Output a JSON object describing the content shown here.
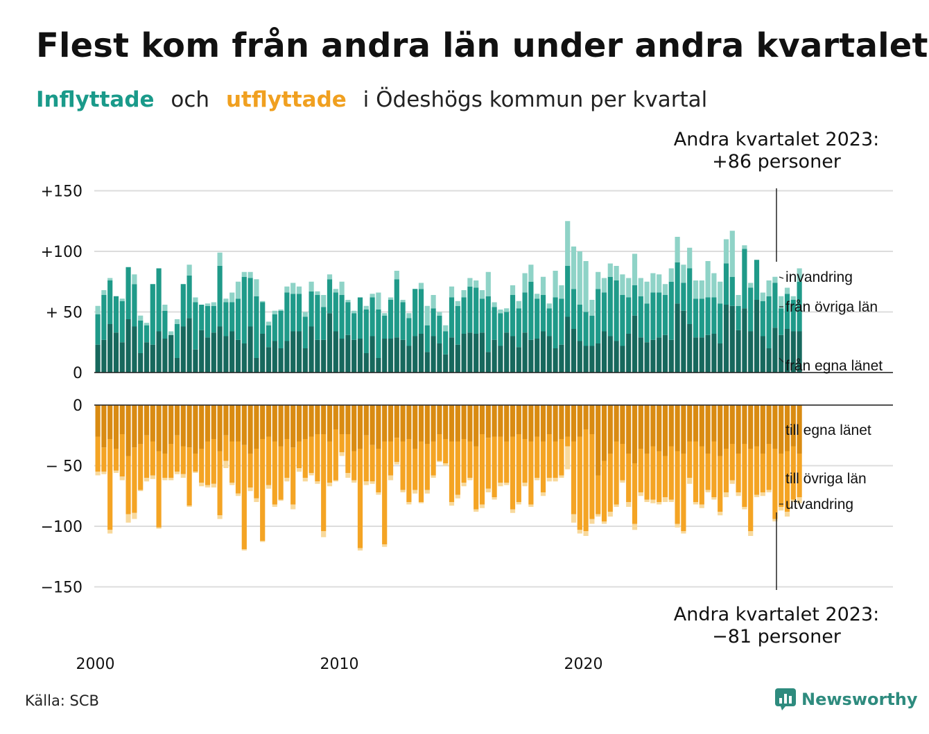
{
  "header": {
    "title": "Flest kom från andra län under andra kvartalet",
    "subtitle_in": "Inflyttade",
    "subtitle_och": "och",
    "subtitle_out": "utflyttade",
    "subtitle_rest": "i Ödeshögs kommun per kvartal"
  },
  "annotations": {
    "top_line1": "Andra kvartalet 2023:",
    "top_line2": "+86 personer",
    "bottom_line1": "Andra kvartalet 2023:",
    "bottom_line2": "−81 personer"
  },
  "footer": {
    "source": "Källa: SCB",
    "brand": "Newsworthy"
  },
  "colors": {
    "in_own": "#17685d",
    "in_other": "#1f9a89",
    "in_immigration": "#8fd3c7",
    "out_own": "#d98b12",
    "out_other": "#f4a424",
    "out_emigration": "#f8d99c",
    "brand": "#2e8b7e"
  },
  "chart_data": [
    {
      "type": "bar",
      "stacked": true,
      "x_start": "2000 Q1",
      "x_end": "2023 Q2",
      "x_tick_labels": [
        "2000",
        "2010",
        "2020"
      ],
      "y_ticks": [
        0,
        50,
        100,
        150
      ],
      "y_tick_labels": [
        "0",
        "+ 50",
        "+100",
        "+150"
      ],
      "ylim": [
        0,
        150
      ],
      "grid": true,
      "series_labels": [
        "från egna länet",
        "från övriga län",
        "invandring"
      ],
      "series": [
        {
          "name": "från egna länet",
          "values": [
            23,
            27,
            40,
            33,
            25,
            44,
            38,
            16,
            25,
            23,
            34,
            28,
            31,
            12,
            38,
            45,
            19,
            35,
            29,
            33,
            38,
            30,
            34,
            27,
            24,
            38,
            12,
            32,
            21,
            26,
            20,
            26,
            34,
            34,
            20,
            38,
            27,
            27,
            49,
            34,
            28,
            31,
            27,
            28,
            16,
            30,
            12,
            28,
            28,
            29,
            27,
            22,
            30,
            32,
            17,
            30,
            24,
            15,
            29,
            23,
            32,
            33,
            32,
            33,
            17,
            27,
            22,
            33,
            30,
            21,
            33,
            27,
            28,
            34,
            30,
            20,
            23,
            46,
            36,
            26,
            22,
            22,
            24,
            34,
            30,
            26,
            22,
            32,
            47,
            29,
            25,
            27,
            29,
            31,
            27,
            57,
            51,
            40,
            29,
            29,
            31,
            32,
            24,
            56,
            55,
            35,
            53,
            34,
            60,
            30,
            20,
            37,
            31,
            36,
            34,
            34
          ]
        },
        {
          "name": "från övriga län",
          "values": [
            25,
            37,
            36,
            30,
            34,
            43,
            35,
            27,
            14,
            50,
            52,
            23,
            0,
            28,
            35,
            35,
            39,
            21,
            26,
            22,
            50,
            28,
            24,
            34,
            55,
            40,
            51,
            26,
            18,
            22,
            31,
            40,
            31,
            31,
            26,
            29,
            37,
            27,
            28,
            32,
            36,
            27,
            22,
            34,
            36,
            32,
            40,
            19,
            32,
            48,
            31,
            23,
            39,
            37,
            22,
            23,
            23,
            19,
            33,
            32,
            30,
            38,
            38,
            28,
            46,
            27,
            27,
            17,
            34,
            32,
            33,
            48,
            33,
            30,
            23,
            42,
            38,
            42,
            33,
            30,
            28,
            25,
            45,
            32,
            49,
            50,
            42,
            30,
            25,
            34,
            32,
            39,
            37,
            33,
            48,
            34,
            23,
            46,
            32,
            32,
            31,
            30,
            33,
            34,
            24,
            20,
            49,
            36,
            33,
            29,
            43,
            37,
            22,
            29,
            26,
            41
          ]
        },
        {
          "name": "invandring",
          "values": [
            7,
            4,
            2,
            0,
            2,
            0,
            8,
            4,
            2,
            0,
            0,
            5,
            3,
            4,
            0,
            9,
            4,
            0,
            2,
            3,
            11,
            3,
            8,
            14,
            4,
            5,
            14,
            1,
            3,
            3,
            1,
            5,
            9,
            6,
            4,
            8,
            3,
            10,
            4,
            3,
            11,
            2,
            2,
            0,
            3,
            3,
            14,
            2,
            2,
            7,
            2,
            4,
            0,
            5,
            16,
            11,
            3,
            5,
            9,
            4,
            6,
            7,
            6,
            7,
            20,
            4,
            3,
            3,
            8,
            6,
            16,
            14,
            4,
            15,
            4,
            22,
            11,
            37,
            35,
            44,
            42,
            13,
            14,
            12,
            11,
            12,
            17,
            16,
            26,
            15,
            18,
            16,
            15,
            9,
            11,
            21,
            15,
            17,
            15,
            15,
            30,
            20,
            18,
            20,
            38,
            9,
            3,
            4,
            0,
            7,
            13,
            5,
            10,
            5,
            3,
            11
          ]
        }
      ]
    },
    {
      "type": "bar",
      "stacked": true,
      "x_start": "2000 Q1",
      "x_end": "2023 Q2",
      "x_tick_labels": [
        "2000",
        "2010",
        "2020"
      ],
      "y_ticks": [
        0,
        -50,
        -100,
        -150
      ],
      "y_tick_labels": [
        "0",
        "− 50",
        "−100",
        "−150"
      ],
      "ylim": [
        -150,
        0
      ],
      "grid": true,
      "series_labels": [
        "till egna länet",
        "till övriga län",
        "utvandring"
      ],
      "series": [
        {
          "name": "till egna länet",
          "values": [
            -26,
            -35,
            -28,
            -36,
            -24,
            -42,
            -35,
            -32,
            -25,
            -30,
            -38,
            -40,
            -32,
            -25,
            -34,
            -35,
            -40,
            -36,
            -30,
            -28,
            -38,
            -25,
            -30,
            -30,
            -33,
            -40,
            -36,
            -28,
            -26,
            -30,
            -34,
            -28,
            -35,
            -30,
            -28,
            -26,
            -24,
            -24,
            -30,
            -20,
            -24,
            -24,
            -38,
            -36,
            -25,
            -33,
            -36,
            -30,
            -30,
            -27,
            -30,
            -28,
            -36,
            -30,
            -32,
            -30,
            -24,
            -28,
            -30,
            -30,
            -28,
            -30,
            -34,
            -24,
            -27,
            -26,
            -26,
            -30,
            -26,
            -24,
            -28,
            -30,
            -26,
            -30,
            -24,
            -30,
            -28,
            -26,
            -30,
            -26,
            -20,
            -24,
            -58,
            -46,
            -40,
            -30,
            -32,
            -40,
            -48,
            -36,
            -40,
            -34,
            -38,
            -42,
            -34,
            -38,
            -40,
            -30,
            -30,
            -34,
            -40,
            -30,
            -42,
            -36,
            -32,
            -40,
            -32,
            -36,
            -34,
            -40,
            -32,
            -36,
            -40,
            -38,
            -34,
            -40
          ]
        },
        {
          "name": "till övriga län",
          "values": [
            -29,
            -20,
            -75,
            -18,
            -35,
            -48,
            -54,
            -38,
            -35,
            -28,
            -63,
            -20,
            -28,
            -30,
            -23,
            -48,
            -15,
            -28,
            -36,
            -37,
            -53,
            -21,
            -34,
            -43,
            -86,
            -28,
            -41,
            -84,
            -40,
            -52,
            -44,
            -32,
            -47,
            -22,
            -32,
            -30,
            -39,
            -80,
            -34,
            -42,
            -15,
            -32,
            -24,
            -82,
            -38,
            -30,
            -36,
            -85,
            -28,
            -20,
            -40,
            -52,
            -34,
            -50,
            -38,
            -28,
            -22,
            -20,
            -50,
            -44,
            -36,
            -30,
            -52,
            -58,
            -42,
            -50,
            -38,
            -34,
            -60,
            -56,
            -36,
            -52,
            -34,
            -42,
            -36,
            -30,
            -30,
            -8,
            -60,
            -77,
            -84,
            -70,
            -32,
            -50,
            -48,
            -52,
            -30,
            -40,
            -50,
            -36,
            -38,
            -44,
            -42,
            -34,
            -44,
            -60,
            -64,
            -30,
            -50,
            -48,
            -30,
            -46,
            -46,
            -36,
            -30,
            -32,
            -52,
            -68,
            -40,
            -32,
            -38,
            -58,
            -44,
            -50,
            -44,
            -36
          ]
        },
        {
          "name": "utvandring",
          "values": [
            -3,
            -2,
            -3,
            -2,
            -3,
            -7,
            -5,
            -1,
            -3,
            -3,
            -1,
            -2,
            -2,
            -2,
            -3,
            -1,
            -1,
            -3,
            -2,
            -3,
            -3,
            -6,
            -2,
            -2,
            -1,
            -3,
            -3,
            -1,
            -3,
            -2,
            -1,
            -3,
            -4,
            -3,
            -3,
            -2,
            -2,
            -5,
            -3,
            -1,
            -3,
            -4,
            -2,
            -2,
            -3,
            -2,
            -2,
            -2,
            -4,
            -2,
            -2,
            -2,
            -3,
            -1,
            -3,
            -2,
            -1,
            -2,
            -3,
            -3,
            -3,
            -2,
            -2,
            -3,
            -3,
            -2,
            -3,
            -2,
            -3,
            -2,
            -3,
            -2,
            -2,
            -3,
            -3,
            -3,
            -2,
            -19,
            -7,
            -3,
            -4,
            -4,
            -2,
            -2,
            -4,
            -2,
            -2,
            -4,
            -5,
            -3,
            -2,
            -3,
            -2,
            -4,
            -2,
            -3,
            -2,
            -5,
            -2,
            -3,
            -2,
            -2,
            -3,
            -4,
            -3,
            -3,
            -2,
            -4,
            -2,
            -3,
            -2,
            -2,
            -3,
            -4,
            -2,
            -5
          ]
        }
      ]
    }
  ]
}
